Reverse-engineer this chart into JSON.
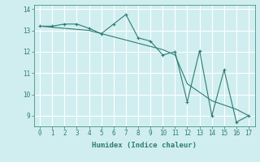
{
  "xlabel": "Humidex (Indice chaleur)",
  "x": [
    0,
    1,
    2,
    3,
    4,
    5,
    6,
    7,
    8,
    9,
    10,
    11,
    12,
    13,
    14,
    15,
    16,
    17
  ],
  "line1_y": [
    13.2,
    13.2,
    13.3,
    13.3,
    13.1,
    12.85,
    13.3,
    13.75,
    12.65,
    12.5,
    11.85,
    12.0,
    9.65,
    12.05,
    9.0,
    11.15,
    8.7,
    9.0
  ],
  "line2_y": [
    13.2,
    13.15,
    13.1,
    13.05,
    13.0,
    12.85,
    12.7,
    12.55,
    12.4,
    12.25,
    12.1,
    11.85,
    10.5,
    10.1,
    9.7,
    9.5,
    9.3,
    9.0
  ],
  "line_color": "#2e7d72",
  "bg_color": "#d0eef0",
  "grid_color": "#ffffff",
  "ylim": [
    8.5,
    14.2
  ],
  "xlim": [
    -0.5,
    17.5
  ],
  "yticks": [
    9,
    10,
    11,
    12,
    13,
    14
  ],
  "xticks": [
    0,
    1,
    2,
    3,
    4,
    5,
    6,
    7,
    8,
    9,
    10,
    11,
    12,
    13,
    14,
    15,
    16,
    17
  ]
}
